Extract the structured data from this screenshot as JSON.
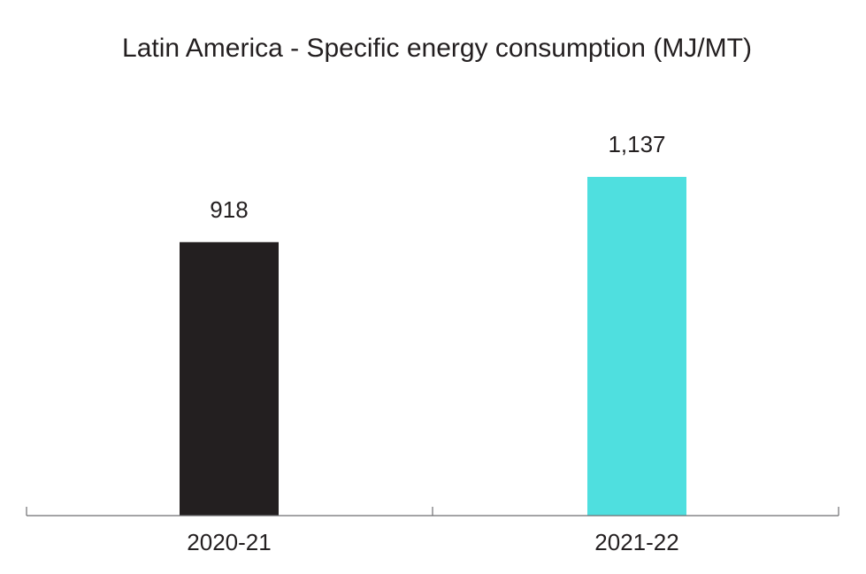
{
  "chart_data": {
    "type": "bar",
    "title": "Latin America - Specific energy consumption (MJ/MT)",
    "categories": [
      "2020-21",
      "2021-22"
    ],
    "values": [
      918,
      1137
    ],
    "value_labels": [
      "918",
      "1,137"
    ],
    "colors": [
      "#231f20",
      "#4fdfdf"
    ],
    "xlabel": "",
    "ylabel": "",
    "ylim": [
      0,
      1300
    ],
    "grid": false,
    "legend": "none"
  }
}
